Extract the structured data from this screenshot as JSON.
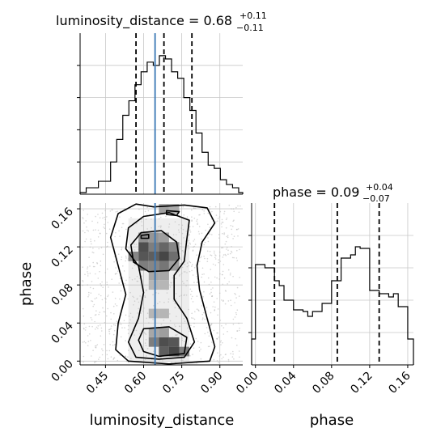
{
  "chart_data": {
    "type": "corner",
    "parameters": [
      "luminosity_distance",
      "phase"
    ],
    "injected_value": {
      "luminosity_distance": 0.645,
      "phase": null
    },
    "colors": {
      "line": "#000000",
      "injection": "#3a78b5",
      "grid": "#c8c8c8",
      "points": "#b4b4b4"
    },
    "grid": true,
    "panels": {
      "dist_hist": {
        "title_prefix": "luminosity_distance = 0.68",
        "title_plus": "+0.11",
        "title_minus": "−0.11",
        "xlim": [
          0.35,
          0.99
        ],
        "ylim": [
          0,
          1
        ],
        "quantiles": [
          0.57,
          0.68,
          0.79
        ],
        "bin_edges": [
          0.35,
          0.374,
          0.398,
          0.422,
          0.446,
          0.47,
          0.494,
          0.518,
          0.542,
          0.566,
          0.59,
          0.614,
          0.638,
          0.662,
          0.686,
          0.71,
          0.734,
          0.758,
          0.782,
          0.806,
          0.83,
          0.854,
          0.878,
          0.902,
          0.926,
          0.95,
          0.974,
          0.99
        ],
        "counts": [
          0.01,
          0.04,
          0.04,
          0.08,
          0.08,
          0.2,
          0.34,
          0.49,
          0.58,
          0.68,
          0.76,
          0.82,
          0.8,
          0.86,
          0.84,
          0.76,
          0.72,
          0.6,
          0.52,
          0.38,
          0.26,
          0.18,
          0.16,
          0.09,
          0.06,
          0.04,
          0.01
        ]
      },
      "phase_hist": {
        "title_prefix": "phase = 0.09",
        "title_plus": "+0.04",
        "title_minus": "−0.07",
        "xlim": [
          -0.004,
          0.166
        ],
        "ylim": [
          0,
          1
        ],
        "quantiles": [
          0.02,
          0.086,
          0.13
        ],
        "bin_edges": [
          -0.004,
          0.0,
          0.01,
          0.02,
          0.025,
          0.03,
          0.04,
          0.05,
          0.055,
          0.06,
          0.07,
          0.08,
          0.09,
          0.1,
          0.105,
          0.11,
          0.12,
          0.13,
          0.14,
          0.145,
          0.15,
          0.16,
          0.166
        ],
        "counts": [
          0.16,
          0.62,
          0.6,
          0.52,
          0.49,
          0.4,
          0.34,
          0.33,
          0.3,
          0.33,
          0.38,
          0.52,
          0.66,
          0.68,
          0.73,
          0.72,
          0.46,
          0.44,
          0.42,
          0.44,
          0.36,
          0.16
        ]
      },
      "joint": {
        "xlim": [
          0.35,
          0.99
        ],
        "ylim": [
          -0.004,
          0.166
        ],
        "contours": [
          [
            [
              0.57,
              0.165
            ],
            [
              0.64,
              0.162
            ],
            [
              0.76,
              0.164
            ],
            [
              0.85,
              0.161
            ],
            [
              0.88,
              0.145
            ],
            [
              0.83,
              0.125
            ],
            [
              0.81,
              0.1
            ],
            [
              0.82,
              0.075
            ],
            [
              0.85,
              0.045
            ],
            [
              0.88,
              0.015
            ],
            [
              0.86,
              0.0
            ],
            [
              0.7,
              -0.003
            ],
            [
              0.54,
              0.0
            ],
            [
              0.49,
              0.012
            ],
            [
              0.5,
              0.04
            ],
            [
              0.53,
              0.07
            ],
            [
              0.5,
              0.1
            ],
            [
              0.47,
              0.13
            ],
            [
              0.5,
              0.155
            ],
            [
              0.57,
              0.165
            ]
          ],
          [
            [
              0.6,
              0.152
            ],
            [
              0.7,
              0.156
            ],
            [
              0.78,
              0.148
            ],
            [
              0.77,
              0.128
            ],
            [
              0.76,
              0.105
            ],
            [
              0.72,
              0.09
            ],
            [
              0.72,
              0.065
            ],
            [
              0.77,
              0.045
            ],
            [
              0.8,
              0.02
            ],
            [
              0.76,
              0.004
            ],
            [
              0.66,
              0.002
            ],
            [
              0.57,
              0.004
            ],
            [
              0.54,
              0.02
            ],
            [
              0.58,
              0.045
            ],
            [
              0.6,
              0.072
            ],
            [
              0.58,
              0.1
            ],
            [
              0.53,
              0.118
            ],
            [
              0.54,
              0.14
            ],
            [
              0.6,
              0.152
            ]
          ],
          [
            [
              0.59,
              0.135
            ],
            [
              0.67,
              0.137
            ],
            [
              0.73,
              0.125
            ],
            [
              0.74,
              0.108
            ],
            [
              0.7,
              0.095
            ],
            [
              0.62,
              0.094
            ],
            [
              0.56,
              0.104
            ],
            [
              0.55,
              0.122
            ],
            [
              0.59,
              0.135
            ]
          ],
          [
            [
              0.6,
              0.034
            ],
            [
              0.7,
              0.036
            ],
            [
              0.77,
              0.025
            ],
            [
              0.76,
              0.008
            ],
            [
              0.66,
              0.005
            ],
            [
              0.6,
              0.01
            ],
            [
              0.58,
              0.022
            ],
            [
              0.6,
              0.034
            ]
          ],
          [
            [
              0.69,
              0.158
            ],
            [
              0.74,
              0.157
            ],
            [
              0.73,
              0.153
            ],
            [
              0.69,
              0.154
            ],
            [
              0.69,
              0.158
            ]
          ],
          [
            [
              0.59,
              0.132
            ],
            [
              0.62,
              0.133
            ],
            [
              0.62,
              0.129
            ],
            [
              0.59,
              0.129
            ],
            [
              0.59,
              0.132
            ]
          ]
        ],
        "density_cells": [
          [
            0.6,
            0.12,
            0.9
          ],
          [
            0.64,
            0.12,
            0.6
          ],
          [
            0.68,
            0.12,
            0.75
          ],
          [
            0.72,
            0.12,
            0.55
          ],
          [
            0.56,
            0.11,
            0.55
          ],
          [
            0.6,
            0.11,
            0.85
          ],
          [
            0.64,
            0.11,
            0.8
          ],
          [
            0.68,
            0.11,
            0.95
          ],
          [
            0.72,
            0.11,
            0.7
          ],
          [
            0.6,
            0.1,
            0.6
          ],
          [
            0.64,
            0.1,
            0.55
          ],
          [
            0.68,
            0.1,
            0.65
          ],
          [
            0.72,
            0.1,
            0.4
          ],
          [
            0.6,
            0.13,
            0.5
          ],
          [
            0.64,
            0.13,
            0.45
          ],
          [
            0.68,
            0.13,
            0.4
          ],
          [
            0.64,
            0.09,
            0.35
          ],
          [
            0.68,
            0.09,
            0.35
          ],
          [
            0.64,
            0.08,
            0.25
          ],
          [
            0.68,
            0.08,
            0.25
          ],
          [
            0.68,
            0.02,
            0.9
          ],
          [
            0.72,
            0.02,
            0.85
          ],
          [
            0.64,
            0.02,
            0.6
          ],
          [
            0.76,
            0.01,
            0.6
          ],
          [
            0.68,
            0.01,
            0.8
          ],
          [
            0.72,
            0.01,
            0.95
          ],
          [
            0.64,
            0.03,
            0.35
          ],
          [
            0.68,
            0.03,
            0.4
          ],
          [
            0.64,
            0.05,
            0.25
          ],
          [
            0.68,
            0.05,
            0.25
          ],
          [
            0.68,
            0.16,
            0.35
          ],
          [
            0.72,
            0.16,
            0.3
          ]
        ]
      }
    },
    "x_ticks_dist": [
      "0.45",
      "0.60",
      "0.75",
      "0.90"
    ],
    "x_ticks_dist_values": [
      0.45,
      0.6,
      0.75,
      0.9
    ],
    "y_ticks_phase": [
      "0.00",
      "0.04",
      "0.08",
      "0.12",
      "0.16"
    ],
    "y_ticks_phase_values": [
      0.0,
      0.04,
      0.08,
      0.12,
      0.16
    ],
    "x_ticks_phase": [
      "0.00",
      "0.04",
      "0.08",
      "0.12",
      "0.16"
    ],
    "x_ticks_phase_values": [
      0.0,
      0.04,
      0.08,
      0.12,
      0.16
    ],
    "xlabel_dist": "luminosity_distance",
    "xlabel_phase": "phase",
    "ylabel_phase": "phase"
  }
}
